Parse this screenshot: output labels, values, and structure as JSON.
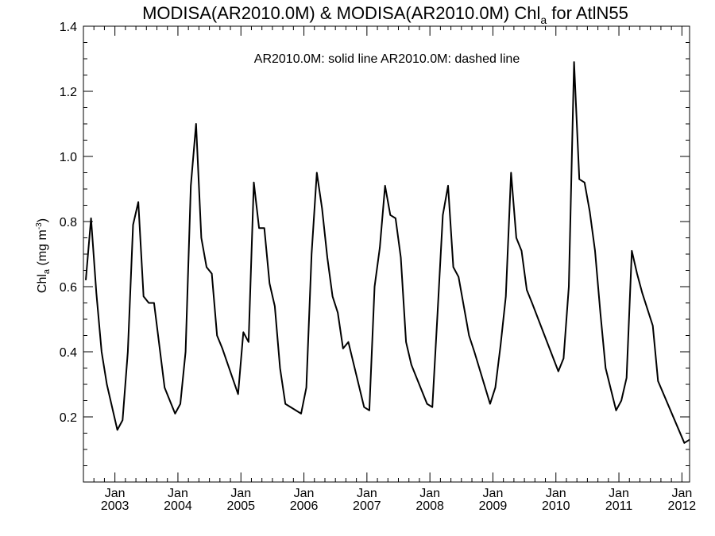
{
  "chart_data": {
    "type": "line",
    "title_main": "MODISA(AR2010.0M) & MODISA(AR2010.0M)  Chl",
    "title_sub": "a",
    "title_tail": " for AtlN55",
    "legend_text": "AR2010.0M: solid line   AR2010.0M: dashed line",
    "ylabel_main": "Chl",
    "ylabel_sub": "a",
    "ylabel_unit": " (mg m",
    "ylabel_sup": "-3",
    "ylabel_close": ")",
    "xlim": [
      "2002-07-01",
      "2012-02-15"
    ],
    "ylim": [
      0.0,
      1.4
    ],
    "yticks": [
      "0.2",
      "0.4",
      "0.6",
      "0.8",
      "1.0",
      "1.2",
      "1.4"
    ],
    "xticks": [
      {
        "date": "2003-01-01",
        "month": "Jan",
        "year": "2003"
      },
      {
        "date": "2004-01-01",
        "month": "Jan",
        "year": "2004"
      },
      {
        "date": "2005-01-01",
        "month": "Jan",
        "year": "2005"
      },
      {
        "date": "2006-01-01",
        "month": "Jan",
        "year": "2006"
      },
      {
        "date": "2007-01-01",
        "month": "Jan",
        "year": "2007"
      },
      {
        "date": "2008-01-01",
        "month": "Jan",
        "year": "2008"
      },
      {
        "date": "2009-01-01",
        "month": "Jan",
        "year": "2009"
      },
      {
        "date": "2010-01-01",
        "month": "Jan",
        "year": "2010"
      },
      {
        "date": "2011-01-01",
        "month": "Jan",
        "year": "2011"
      },
      {
        "date": "2012-01-01",
        "month": "Jan",
        "year": "2012"
      }
    ],
    "series": [
      {
        "style": "solid",
        "color": "#000000",
        "points": [
          [
            "2002-07",
            0.62
          ],
          [
            "2002-08",
            0.81
          ],
          [
            "2002-09",
            0.58
          ],
          [
            "2002-10",
            0.4
          ],
          [
            "2002-11",
            0.3
          ],
          [
            "2003-01",
            0.16
          ],
          [
            "2003-02",
            0.19
          ],
          [
            "2003-03",
            0.4
          ],
          [
            "2003-04",
            0.79
          ],
          [
            "2003-05",
            0.86
          ],
          [
            "2003-06",
            0.57
          ],
          [
            "2003-07",
            0.55
          ],
          [
            "2003-08",
            0.55
          ],
          [
            "2003-10",
            0.29
          ],
          [
            "2003-12",
            0.21
          ],
          [
            "2004-01",
            0.24
          ],
          [
            "2004-02",
            0.4
          ],
          [
            "2004-03",
            0.91
          ],
          [
            "2004-04",
            1.1
          ],
          [
            "2004-05",
            0.75
          ],
          [
            "2004-06",
            0.66
          ],
          [
            "2004-07",
            0.64
          ],
          [
            "2004-08",
            0.45
          ],
          [
            "2004-09",
            0.41
          ],
          [
            "2004-12",
            0.27
          ],
          [
            "2005-01",
            0.46
          ],
          [
            "2005-02",
            0.43
          ],
          [
            "2005-03",
            0.92
          ],
          [
            "2005-04",
            0.78
          ],
          [
            "2005-05",
            0.78
          ],
          [
            "2005-06",
            0.61
          ],
          [
            "2005-07",
            0.54
          ],
          [
            "2005-08",
            0.35
          ],
          [
            "2005-09",
            0.24
          ],
          [
            "2005-12",
            0.21
          ],
          [
            "2006-01",
            0.29
          ],
          [
            "2006-02",
            0.7
          ],
          [
            "2006-03",
            0.95
          ],
          [
            "2006-04",
            0.84
          ],
          [
            "2006-05",
            0.69
          ],
          [
            "2006-06",
            0.57
          ],
          [
            "2006-07",
            0.52
          ],
          [
            "2006-08",
            0.41
          ],
          [
            "2006-09",
            0.43
          ],
          [
            "2006-12",
            0.23
          ],
          [
            "2007-01",
            0.22
          ],
          [
            "2007-02",
            0.6
          ],
          [
            "2007-03",
            0.72
          ],
          [
            "2007-04",
            0.91
          ],
          [
            "2007-05",
            0.82
          ],
          [
            "2007-06",
            0.81
          ],
          [
            "2007-07",
            0.69
          ],
          [
            "2007-08",
            0.43
          ],
          [
            "2007-09",
            0.36
          ],
          [
            "2007-12",
            0.24
          ],
          [
            "2008-01",
            0.23
          ],
          [
            "2008-02",
            0.52
          ],
          [
            "2008-03",
            0.82
          ],
          [
            "2008-04",
            0.91
          ],
          [
            "2008-05",
            0.66
          ],
          [
            "2008-06",
            0.63
          ],
          [
            "2008-07",
            0.54
          ],
          [
            "2008-08",
            0.45
          ],
          [
            "2008-09",
            0.4
          ],
          [
            "2008-12",
            0.24
          ],
          [
            "2009-01",
            0.29
          ],
          [
            "2009-02",
            0.42
          ],
          [
            "2009-03",
            0.57
          ],
          [
            "2009-04",
            0.95
          ],
          [
            "2009-05",
            0.75
          ],
          [
            "2009-06",
            0.71
          ],
          [
            "2009-07",
            0.59
          ],
          [
            "2009-08",
            0.55
          ],
          [
            "2010-01",
            0.34
          ],
          [
            "2010-02",
            0.38
          ],
          [
            "2010-03",
            0.6
          ],
          [
            "2010-04",
            1.29
          ],
          [
            "2010-05",
            0.93
          ],
          [
            "2010-06",
            0.92
          ],
          [
            "2010-07",
            0.83
          ],
          [
            "2010-08",
            0.71
          ],
          [
            "2010-09",
            0.52
          ],
          [
            "2010-10",
            0.35
          ],
          [
            "2010-12",
            0.22
          ],
          [
            "2011-01",
            0.25
          ],
          [
            "2011-02",
            0.32
          ],
          [
            "2011-03",
            0.71
          ],
          [
            "2011-04",
            0.64
          ],
          [
            "2011-05",
            0.58
          ],
          [
            "2011-07",
            0.48
          ],
          [
            "2011-08",
            0.31
          ],
          [
            "2012-01",
            0.12
          ],
          [
            "2012-02",
            0.13
          ]
        ]
      }
    ]
  }
}
